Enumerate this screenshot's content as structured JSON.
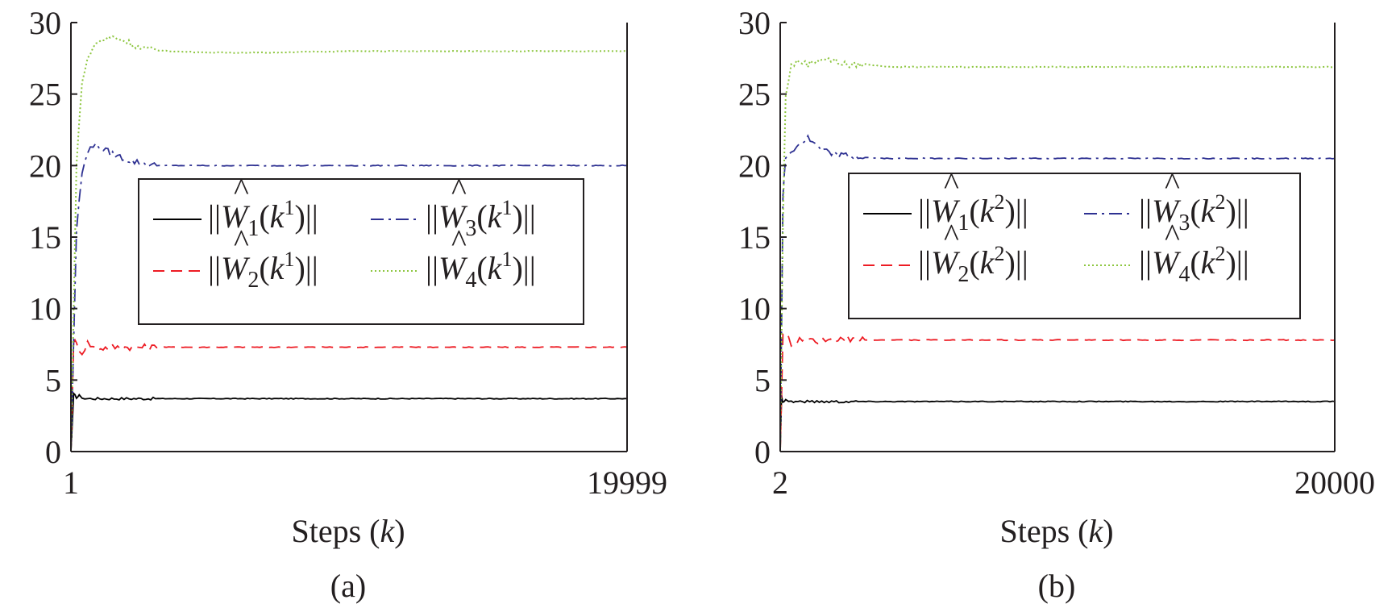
{
  "panels": [
    {
      "panel_label": "(a)",
      "legend": {
        "entries": [
          {
            "prefix": "||",
            "symbol": "W",
            "hat": "^",
            "sub": "1",
            "open": "(k",
            "sup": "1",
            "close": ")||"
          },
          {
            "prefix": "||",
            "symbol": "W",
            "hat": "^",
            "sub": "3",
            "open": "(k",
            "sup": "1",
            "close": ")||"
          },
          {
            "prefix": "||",
            "symbol": "W",
            "hat": "^",
            "sub": "2",
            "open": "(k",
            "sup": "1",
            "close": ")||"
          },
          {
            "prefix": "||",
            "symbol": "W",
            "hat": "^",
            "sub": "4",
            "open": "(k",
            "sup": "1",
            "close": ")||"
          }
        ]
      }
    },
    {
      "panel_label": "(b)",
      "legend": {
        "entries": [
          {
            "prefix": "||",
            "symbol": "W",
            "hat": "^",
            "sub": "1",
            "open": "(k",
            "sup": "2",
            "close": ")||"
          },
          {
            "prefix": "||",
            "symbol": "W",
            "hat": "^",
            "sub": "3",
            "open": "(k",
            "sup": "2",
            "close": ")||"
          },
          {
            "prefix": "||",
            "symbol": "W",
            "hat": "^",
            "sub": "2",
            "open": "(k",
            "sup": "2",
            "close": ")||"
          },
          {
            "prefix": "||",
            "symbol": "W",
            "hat": "^",
            "sub": "4",
            "open": "(k",
            "sup": "2",
            "close": ")||"
          }
        ]
      }
    }
  ],
  "colors": {
    "W1": "#000000",
    "W2": "#ed1c24",
    "W3": "#2e3192",
    "W4": "#8dc63f",
    "axis": "#231f20"
  },
  "chart_data": [
    {
      "type": "line",
      "xlabel": "Steps (k)",
      "xlabel_parts": {
        "prefix": "Steps (",
        "italic": "k",
        "suffix": ")"
      },
      "ylabel": "",
      "xlim": [
        1,
        19999
      ],
      "ylim": [
        0,
        30
      ],
      "xticks": [
        "1",
        "19999"
      ],
      "yticks": [
        "0",
        "5",
        "10",
        "15",
        "20",
        "25",
        "30"
      ],
      "grid": false,
      "legend_position": "center-right",
      "series": [
        {
          "name": "||Ŵ1(k1)||",
          "style": "solid",
          "color": "#000000",
          "x": [
            1,
            100,
            200,
            300,
            500,
            800,
            1200,
            2000,
            4000,
            8000,
            12000,
            16000,
            19999
          ],
          "y": [
            0,
            4.0,
            3.8,
            3.9,
            3.7,
            3.7,
            3.7,
            3.7,
            3.7,
            3.7,
            3.7,
            3.7,
            3.7
          ]
        },
        {
          "name": "||Ŵ2(k1)||",
          "style": "dashed",
          "color": "#ed1c24",
          "x": [
            1,
            100,
            200,
            400,
            600,
            900,
            1500,
            3000,
            6000,
            10000,
            15000,
            19999
          ],
          "y": [
            0,
            7.8,
            7.5,
            6.9,
            7.6,
            7.2,
            7.3,
            7.3,
            7.3,
            7.3,
            7.3,
            7.3
          ]
        },
        {
          "name": "||Ŵ3(k1)||",
          "style": "dashdot",
          "color": "#2e3192",
          "x": [
            1,
            200,
            400,
            700,
            1000,
            1500,
            2200,
            3000,
            5000,
            8000,
            12000,
            16000,
            19999
          ],
          "y": [
            0,
            15.5,
            19.5,
            21.5,
            21.3,
            20.8,
            20.3,
            20.0,
            20.0,
            20.0,
            20.0,
            20.0,
            20.0
          ]
        },
        {
          "name": "||Ŵ4(k1)||",
          "style": "dotted",
          "color": "#8dc63f",
          "x": [
            1,
            200,
            400,
            700,
            1000,
            1500,
            2000,
            2500,
            3500,
            5000,
            7000,
            10000,
            14000,
            19999
          ],
          "y": [
            0,
            20,
            26,
            28,
            28.7,
            29.0,
            28.7,
            28.2,
            28.0,
            27.9,
            27.9,
            28.0,
            28.0,
            28.0
          ]
        }
      ]
    },
    {
      "type": "line",
      "xlabel": "Steps (k)",
      "xlabel_parts": {
        "prefix": "Steps (",
        "italic": "k",
        "suffix": ")"
      },
      "ylabel": "",
      "xlim": [
        2,
        20000
      ],
      "ylim": [
        0,
        30
      ],
      "xticks": [
        "2",
        "20000"
      ],
      "yticks": [
        "0",
        "5",
        "10",
        "15",
        "20",
        "25",
        "30"
      ],
      "grid": false,
      "legend_position": "center-right",
      "series": [
        {
          "name": "||Ŵ1(k2)||",
          "style": "solid",
          "color": "#000000",
          "x": [
            2,
            50,
            100,
            200,
            400,
            800,
            1500,
            3000,
            6000,
            10000,
            15000,
            20000
          ],
          "y": [
            0,
            3.9,
            3.5,
            3.6,
            3.5,
            3.5,
            3.5,
            3.5,
            3.5,
            3.5,
            3.5,
            3.5
          ]
        },
        {
          "name": "||Ŵ2(k2)||",
          "style": "dashed",
          "color": "#ed1c24",
          "x": [
            2,
            100,
            200,
            400,
            700,
            1000,
            2000,
            5000,
            10000,
            15000,
            20000
          ],
          "y": [
            0,
            8.0,
            8.1,
            7.6,
            7.8,
            7.7,
            7.8,
            7.8,
            7.8,
            7.8,
            7.8
          ]
        },
        {
          "name": "||Ŵ3(k2)||",
          "style": "dashdot",
          "color": "#2e3192",
          "x": [
            2,
            100,
            200,
            400,
            700,
            1000,
            1500,
            2200,
            3500,
            6000,
            10000,
            15000,
            20000
          ],
          "y": [
            0,
            18,
            20.5,
            21,
            21.5,
            21.9,
            21.0,
            20.7,
            20.5,
            20.5,
            20.5,
            20.5,
            20.5
          ]
        },
        {
          "name": "||Ŵ4(k2)||",
          "style": "dotted",
          "color": "#8dc63f",
          "x": [
            2,
            100,
            200,
            400,
            700,
            1000,
            1500,
            2000,
            2500,
            3000,
            4000,
            6000,
            10000,
            15000,
            20000
          ],
          "y": [
            0,
            16,
            25,
            27,
            27.3,
            27.1,
            27.5,
            27.3,
            27.0,
            27.1,
            26.9,
            26.9,
            26.9,
            26.9,
            26.9
          ]
        }
      ]
    }
  ]
}
